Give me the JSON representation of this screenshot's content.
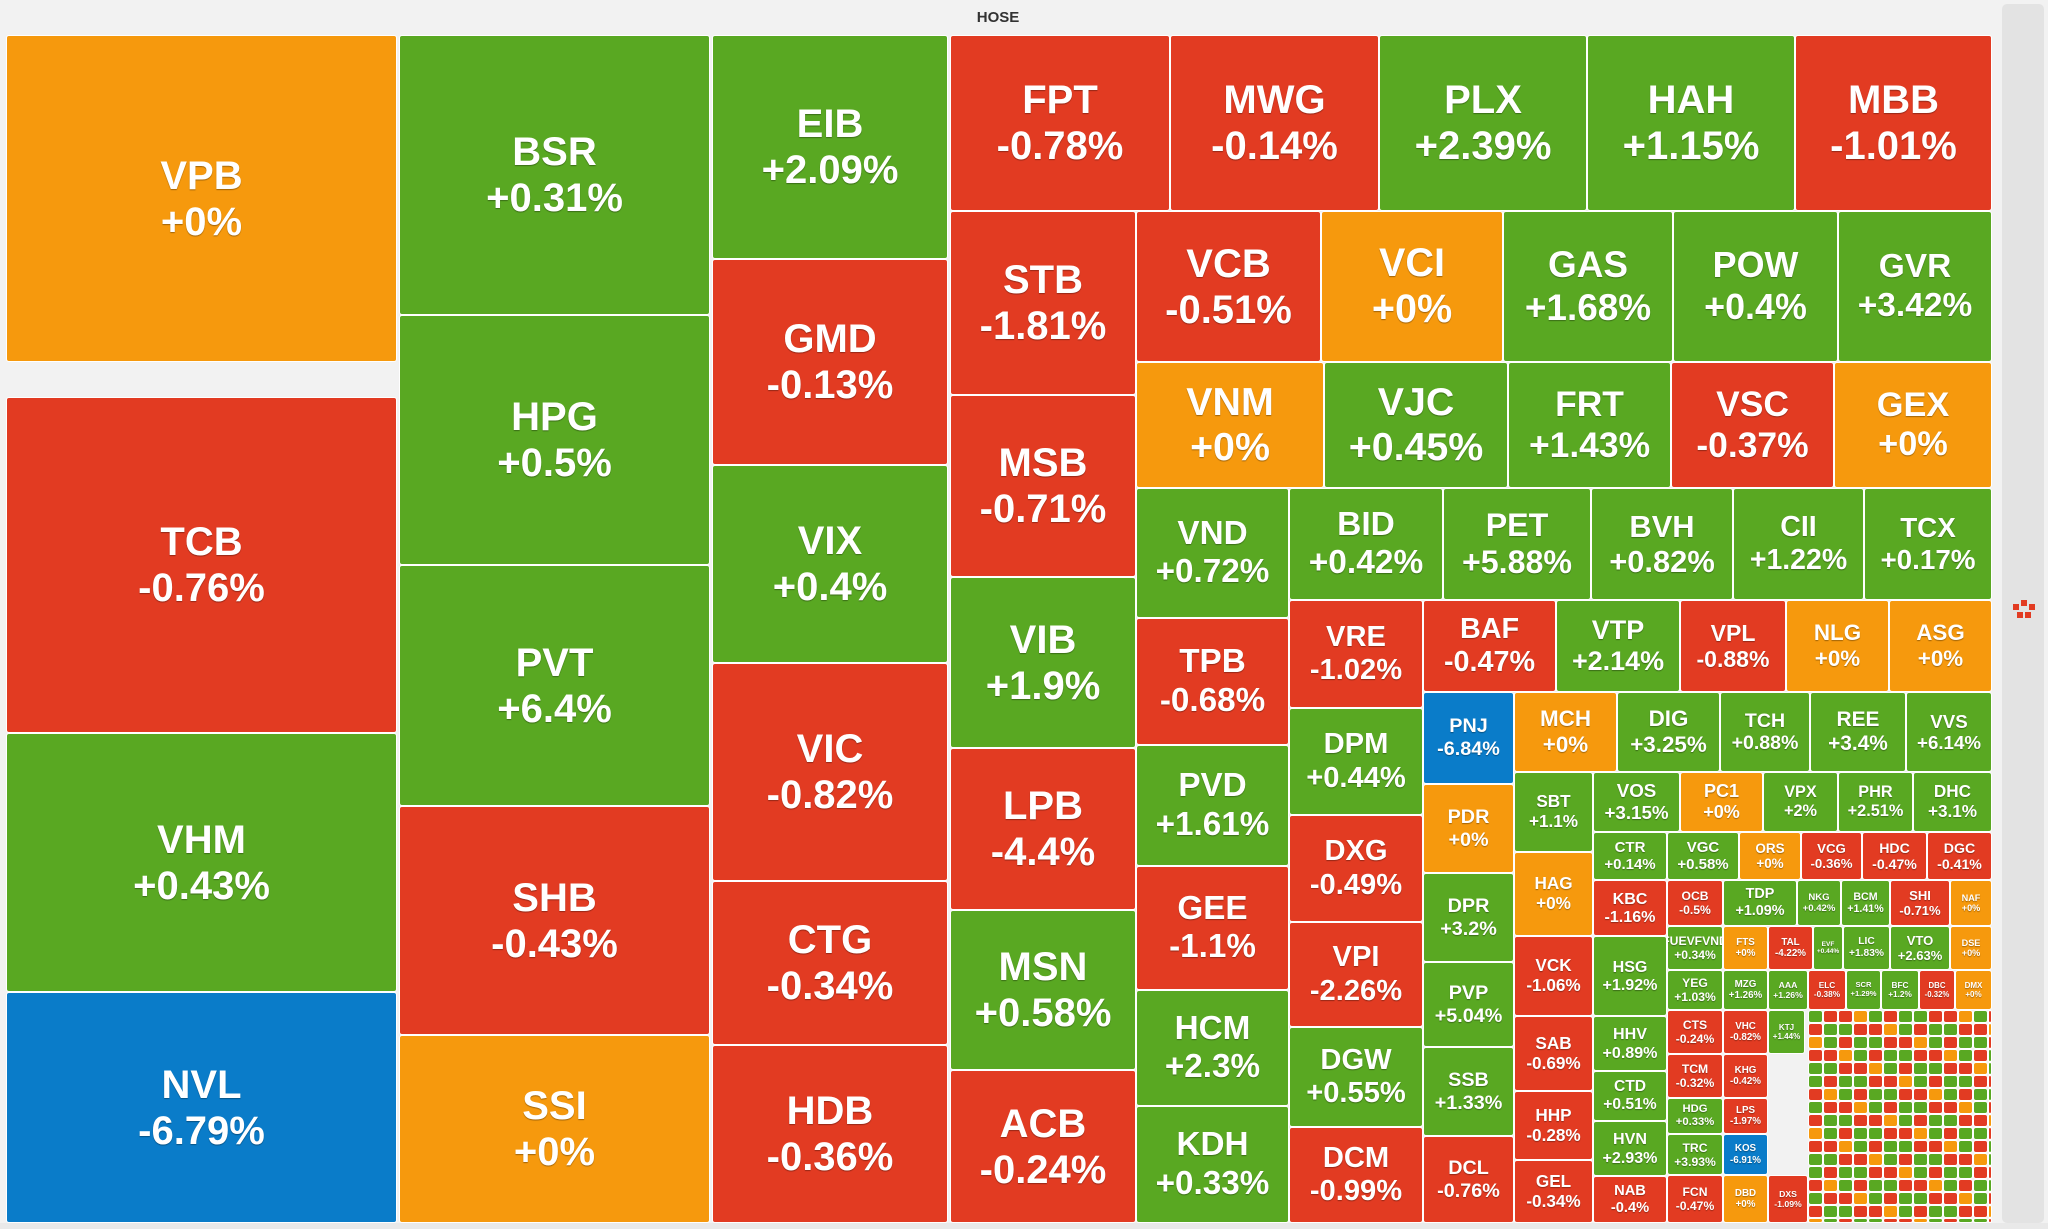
{
  "header": {
    "title": "HOSE"
  },
  "colors": {
    "up": "#59a822",
    "down": "#e23b22",
    "flat": "#f6990d",
    "floor": "#0a7cc9"
  },
  "icons": {
    "logo": "brand-logo-icon"
  },
  "chart_data": {
    "type": "treemap",
    "title": "HOSE",
    "tiles": [
      {
        "symbol": "VPB",
        "change": "+0%",
        "value": 0,
        "status": "flat"
      },
      {
        "symbol": "TCB",
        "change": "-0.76%",
        "value": -0.76,
        "status": "down"
      },
      {
        "symbol": "VHM",
        "change": "+0.43%",
        "value": 0.43,
        "status": "up"
      },
      {
        "symbol": "NVL",
        "change": "-6.79%",
        "value": -6.79,
        "status": "floor"
      },
      {
        "symbol": "BSR",
        "change": "+0.31%",
        "value": 0.31,
        "status": "up"
      },
      {
        "symbol": "HPG",
        "change": "+0.5%",
        "value": 0.5,
        "status": "up"
      },
      {
        "symbol": "PVT",
        "change": "+6.4%",
        "value": 6.4,
        "status": "up"
      },
      {
        "symbol": "SHB",
        "change": "-0.43%",
        "value": -0.43,
        "status": "down"
      },
      {
        "symbol": "SSI",
        "change": "+0%",
        "value": 0,
        "status": "flat"
      },
      {
        "symbol": "EIB",
        "change": "+2.09%",
        "value": 2.09,
        "status": "up"
      },
      {
        "symbol": "GMD",
        "change": "-0.13%",
        "value": -0.13,
        "status": "down"
      },
      {
        "symbol": "VIX",
        "change": "+0.4%",
        "value": 0.4,
        "status": "up"
      },
      {
        "symbol": "VIC",
        "change": "-0.82%",
        "value": -0.82,
        "status": "down"
      },
      {
        "symbol": "CTG",
        "change": "-0.34%",
        "value": -0.34,
        "status": "down"
      },
      {
        "symbol": "HDB",
        "change": "-0.36%",
        "value": -0.36,
        "status": "down"
      },
      {
        "symbol": "FPT",
        "change": "-0.78%",
        "value": -0.78,
        "status": "down"
      },
      {
        "symbol": "MWG",
        "change": "-0.14%",
        "value": -0.14,
        "status": "down"
      },
      {
        "symbol": "PLX",
        "change": "+2.39%",
        "value": 2.39,
        "status": "up"
      },
      {
        "symbol": "HAH",
        "change": "+1.15%",
        "value": 1.15,
        "status": "up"
      },
      {
        "symbol": "MBB",
        "change": "-1.01%",
        "value": -1.01,
        "status": "down"
      },
      {
        "symbol": "STB",
        "change": "-1.81%",
        "value": -1.81,
        "status": "down"
      },
      {
        "symbol": "MSB",
        "change": "-0.71%",
        "value": -0.71,
        "status": "down"
      },
      {
        "symbol": "VIB",
        "change": "+1.9%",
        "value": 1.9,
        "status": "up"
      },
      {
        "symbol": "LPB",
        "change": "-4.4%",
        "value": -4.4,
        "status": "down"
      },
      {
        "symbol": "MSN",
        "change": "+0.58%",
        "value": 0.58,
        "status": "up"
      },
      {
        "symbol": "ACB",
        "change": "-0.24%",
        "value": -0.24,
        "status": "down"
      },
      {
        "symbol": "VCB",
        "change": "-0.51%",
        "value": -0.51,
        "status": "down"
      },
      {
        "symbol": "VCI",
        "change": "+0%",
        "value": 0,
        "status": "flat"
      },
      {
        "symbol": "GAS",
        "change": "+1.68%",
        "value": 1.68,
        "status": "up"
      },
      {
        "symbol": "POW",
        "change": "+0.4%",
        "value": 0.4,
        "status": "up"
      },
      {
        "symbol": "GVR",
        "change": "+3.42%",
        "value": 3.42,
        "status": "up"
      },
      {
        "symbol": "VNM",
        "change": "+0%",
        "value": 0,
        "status": "flat"
      },
      {
        "symbol": "VJC",
        "change": "+0.45%",
        "value": 0.45,
        "status": "up"
      },
      {
        "symbol": "FRT",
        "change": "+1.43%",
        "value": 1.43,
        "status": "up"
      },
      {
        "symbol": "VSC",
        "change": "-0.37%",
        "value": -0.37,
        "status": "down"
      },
      {
        "symbol": "GEX",
        "change": "+0%",
        "value": 0,
        "status": "flat"
      },
      {
        "symbol": "VND",
        "change": "+0.72%",
        "value": 0.72,
        "status": "up"
      },
      {
        "symbol": "TPB",
        "change": "-0.68%",
        "value": -0.68,
        "status": "down"
      },
      {
        "symbol": "PVD",
        "change": "+1.61%",
        "value": 1.61,
        "status": "up"
      },
      {
        "symbol": "GEE",
        "change": "-1.1%",
        "value": -1.1,
        "status": "down"
      },
      {
        "symbol": "HCM",
        "change": "+2.3%",
        "value": 2.3,
        "status": "up"
      },
      {
        "symbol": "KDH",
        "change": "+0.33%",
        "value": 0.33,
        "status": "up"
      },
      {
        "symbol": "BID",
        "change": "+0.42%",
        "value": 0.42,
        "status": "up"
      },
      {
        "symbol": "PET",
        "change": "+5.88%",
        "value": 5.88,
        "status": "up"
      },
      {
        "symbol": "BVH",
        "change": "+0.82%",
        "value": 0.82,
        "status": "up"
      },
      {
        "symbol": "CII",
        "change": "+1.22%",
        "value": 1.22,
        "status": "up"
      },
      {
        "symbol": "TCX",
        "change": "+0.17%",
        "value": 0.17,
        "status": "up"
      },
      {
        "symbol": "VRE",
        "change": "-1.02%",
        "value": -1.02,
        "status": "down"
      },
      {
        "symbol": "DPM",
        "change": "+0.44%",
        "value": 0.44,
        "status": "up"
      },
      {
        "symbol": "DXG",
        "change": "-0.49%",
        "value": -0.49,
        "status": "down"
      },
      {
        "symbol": "VPI",
        "change": "-2.26%",
        "value": -2.26,
        "status": "down"
      },
      {
        "symbol": "DGW",
        "change": "+0.55%",
        "value": 0.55,
        "status": "up"
      },
      {
        "symbol": "DCM",
        "change": "-0.99%",
        "value": -0.99,
        "status": "down"
      },
      {
        "symbol": "BAF",
        "change": "-0.47%",
        "value": -0.47,
        "status": "down"
      },
      {
        "symbol": "VTP",
        "change": "+2.14%",
        "value": 2.14,
        "status": "up"
      },
      {
        "symbol": "VPL",
        "change": "-0.88%",
        "value": -0.88,
        "status": "down"
      },
      {
        "symbol": "NLG",
        "change": "+0%",
        "value": 0,
        "status": "flat"
      },
      {
        "symbol": "ASG",
        "change": "+0%",
        "value": 0,
        "status": "flat"
      },
      {
        "symbol": "PNJ",
        "change": "-6.84%",
        "value": -6.84,
        "status": "floor"
      },
      {
        "symbol": "PDR",
        "change": "+0%",
        "value": 0,
        "status": "flat"
      },
      {
        "symbol": "DPR",
        "change": "+3.2%",
        "value": 3.2,
        "status": "up"
      },
      {
        "symbol": "PVP",
        "change": "+5.04%",
        "value": 5.04,
        "status": "up"
      },
      {
        "symbol": "SSB",
        "change": "+1.33%",
        "value": 1.33,
        "status": "up"
      },
      {
        "symbol": "DCL",
        "change": "-0.76%",
        "value": -0.76,
        "status": "down"
      },
      {
        "symbol": "MCH",
        "change": "+0%",
        "value": 0,
        "status": "flat"
      },
      {
        "symbol": "DIG",
        "change": "+3.25%",
        "value": 3.25,
        "status": "up"
      },
      {
        "symbol": "TCH",
        "change": "+0.88%",
        "value": 0.88,
        "status": "up"
      },
      {
        "symbol": "REE",
        "change": "+3.4%",
        "value": 3.4,
        "status": "up"
      },
      {
        "symbol": "VVS",
        "change": "+6.14%",
        "value": 6.14,
        "status": "up"
      },
      {
        "symbol": "SBT",
        "change": "+1.1%",
        "value": 1.1,
        "status": "up"
      },
      {
        "symbol": "HAG",
        "change": "+0%",
        "value": 0,
        "status": "flat"
      },
      {
        "symbol": "VCK",
        "change": "-1.06%",
        "value": -1.06,
        "status": "down"
      },
      {
        "symbol": "SAB",
        "change": "-0.69%",
        "value": -0.69,
        "status": "down"
      },
      {
        "symbol": "HHP",
        "change": "-0.28%",
        "value": -0.28,
        "status": "down"
      },
      {
        "symbol": "GEL",
        "change": "-0.34%",
        "value": -0.34,
        "status": "down"
      },
      {
        "symbol": "VOS",
        "change": "+3.15%",
        "value": 3.15,
        "status": "up"
      },
      {
        "symbol": "PC1",
        "change": "+0%",
        "value": 0,
        "status": "flat"
      },
      {
        "symbol": "VPX",
        "change": "+2%",
        "value": 2,
        "status": "up"
      },
      {
        "symbol": "PHR",
        "change": "+2.51%",
        "value": 2.51,
        "status": "up"
      },
      {
        "symbol": "DHC",
        "change": "+3.1%",
        "value": 3.1,
        "status": "up"
      },
      {
        "symbol": "CTR",
        "change": "+0.14%",
        "value": 0.14,
        "status": "up"
      },
      {
        "symbol": "KBC",
        "change": "-1.16%",
        "value": -1.16,
        "status": "down"
      },
      {
        "symbol": "HSG",
        "change": "+1.92%",
        "value": 1.92,
        "status": "up"
      },
      {
        "symbol": "HHV",
        "change": "+0.89%",
        "value": 0.89,
        "status": "up"
      },
      {
        "symbol": "CTD",
        "change": "+0.51%",
        "value": 0.51,
        "status": "up"
      },
      {
        "symbol": "HVN",
        "change": "+2.93%",
        "value": 2.93,
        "status": "up"
      },
      {
        "symbol": "NAB",
        "change": "-0.4%",
        "value": -0.4,
        "status": "down"
      },
      {
        "symbol": "VGC",
        "change": "+0.58%",
        "value": 0.58,
        "status": "up"
      },
      {
        "symbol": "ORS",
        "change": "+0%",
        "value": 0,
        "status": "flat"
      },
      {
        "symbol": "VCG",
        "change": "-0.36%",
        "value": -0.36,
        "status": "down"
      },
      {
        "symbol": "HDC",
        "change": "-0.47%",
        "value": -0.47,
        "status": "down"
      },
      {
        "symbol": "DGC",
        "change": "-0.41%",
        "value": -0.41,
        "status": "down"
      },
      {
        "symbol": "OCB",
        "change": "-0.5%",
        "value": -0.5,
        "status": "down"
      },
      {
        "symbol": "TDP",
        "change": "+1.09%",
        "value": 1.09,
        "status": "up"
      },
      {
        "symbol": "NKG",
        "change": "+0.42%",
        "value": 0.42,
        "status": "up"
      },
      {
        "symbol": "BCM",
        "change": "+1.41%",
        "value": 1.41,
        "status": "up"
      },
      {
        "symbol": "SHI",
        "change": "-0.71%",
        "value": -0.71,
        "status": "down"
      },
      {
        "symbol": "NAF",
        "change": "+0%",
        "value": 0,
        "status": "flat"
      },
      {
        "symbol": "FUEVFVND",
        "change": "+0.34%",
        "value": 0.34,
        "status": "up"
      },
      {
        "symbol": "FTS",
        "change": "+0%",
        "value": 0,
        "status": "flat"
      },
      {
        "symbol": "TAL",
        "change": "-4.22%",
        "value": -4.22,
        "status": "down"
      },
      {
        "symbol": "EVF",
        "change": "+0.44%",
        "value": 0.44,
        "status": "up"
      },
      {
        "symbol": "LIC",
        "change": "+1.83%",
        "value": 1.83,
        "status": "up"
      },
      {
        "symbol": "VTO",
        "change": "+2.63%",
        "value": 2.63,
        "status": "up"
      },
      {
        "symbol": "DSE",
        "change": "+0%",
        "value": 0,
        "status": "flat"
      },
      {
        "symbol": "YEG",
        "change": "+1.03%",
        "value": 1.03,
        "status": "up"
      },
      {
        "symbol": "MZG",
        "change": "+1.26%",
        "value": 1.26,
        "status": "up"
      },
      {
        "symbol": "AAA",
        "change": "+1.26%",
        "value": 1.26,
        "status": "up"
      },
      {
        "symbol": "ELC",
        "change": "-0.38%",
        "value": -0.38,
        "status": "down"
      },
      {
        "symbol": "SCR",
        "change": "+1.29%",
        "value": 1.29,
        "status": "up"
      },
      {
        "symbol": "BFC",
        "change": "+1.2%",
        "value": 1.2,
        "status": "up"
      },
      {
        "symbol": "DBC",
        "change": "-0.32%",
        "value": -0.32,
        "status": "down"
      },
      {
        "symbol": "DMX",
        "change": "+0%",
        "value": 0,
        "status": "flat"
      },
      {
        "symbol": "CTS",
        "change": "-0.24%",
        "value": -0.24,
        "status": "down"
      },
      {
        "symbol": "VHC",
        "change": "-0.82%",
        "value": -0.82,
        "status": "down"
      },
      {
        "symbol": "KTJ",
        "change": "+1.44%",
        "value": 1.44,
        "status": "up"
      },
      {
        "symbol": "TCM",
        "change": "-0.32%",
        "value": -0.32,
        "status": "down"
      },
      {
        "symbol": "KHG",
        "change": "-0.42%",
        "value": -0.42,
        "status": "down"
      },
      {
        "symbol": "HDG",
        "change": "+0.33%",
        "value": 0.33,
        "status": "up"
      },
      {
        "symbol": "LPS",
        "change": "-1.97%",
        "value": -1.97,
        "status": "down"
      },
      {
        "symbol": "TRC",
        "change": "+3.93%",
        "value": 3.93,
        "status": "up"
      },
      {
        "symbol": "KOS",
        "change": "-6.91%",
        "value": -6.91,
        "status": "floor"
      },
      {
        "symbol": "FCN",
        "change": "-0.47%",
        "value": -0.47,
        "status": "down"
      },
      {
        "symbol": "DBD",
        "change": "+0%",
        "value": 0,
        "status": "flat"
      },
      {
        "symbol": "DXS",
        "change": "-1.09%",
        "value": -1.09,
        "status": "down"
      }
    ]
  }
}
